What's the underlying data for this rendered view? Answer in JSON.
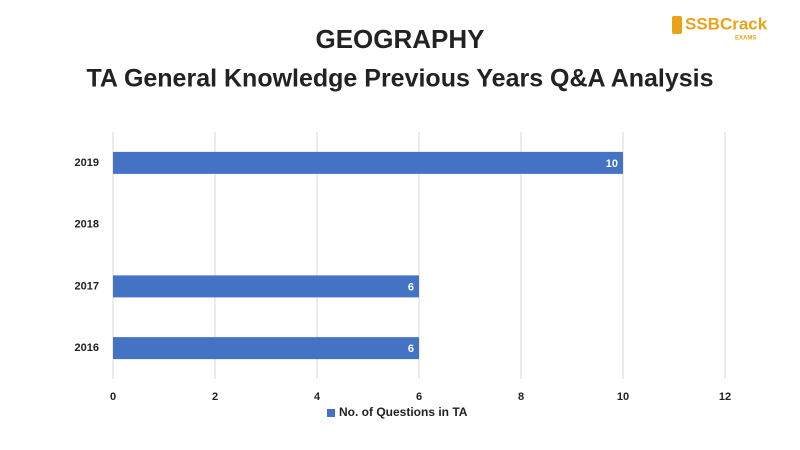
{
  "logo": {
    "text": "SSBCrack",
    "subtext": "EXAMS"
  },
  "chart_data": {
    "type": "hbar",
    "title": "GEOGRAPHY",
    "subtitle": "TA General Knowledge Previous Years Q&A Analysis",
    "categories": [
      "2019",
      "2018",
      "2017",
      "2016"
    ],
    "series": [
      {
        "name": "No. of Questions in TA",
        "color": "#4472c4",
        "values": [
          10,
          null,
          6,
          6
        ]
      }
    ],
    "xlim": [
      0,
      12
    ],
    "xticks": [
      0,
      2,
      4,
      6,
      8,
      10,
      12
    ],
    "grid": true,
    "legend": "bottom"
  }
}
